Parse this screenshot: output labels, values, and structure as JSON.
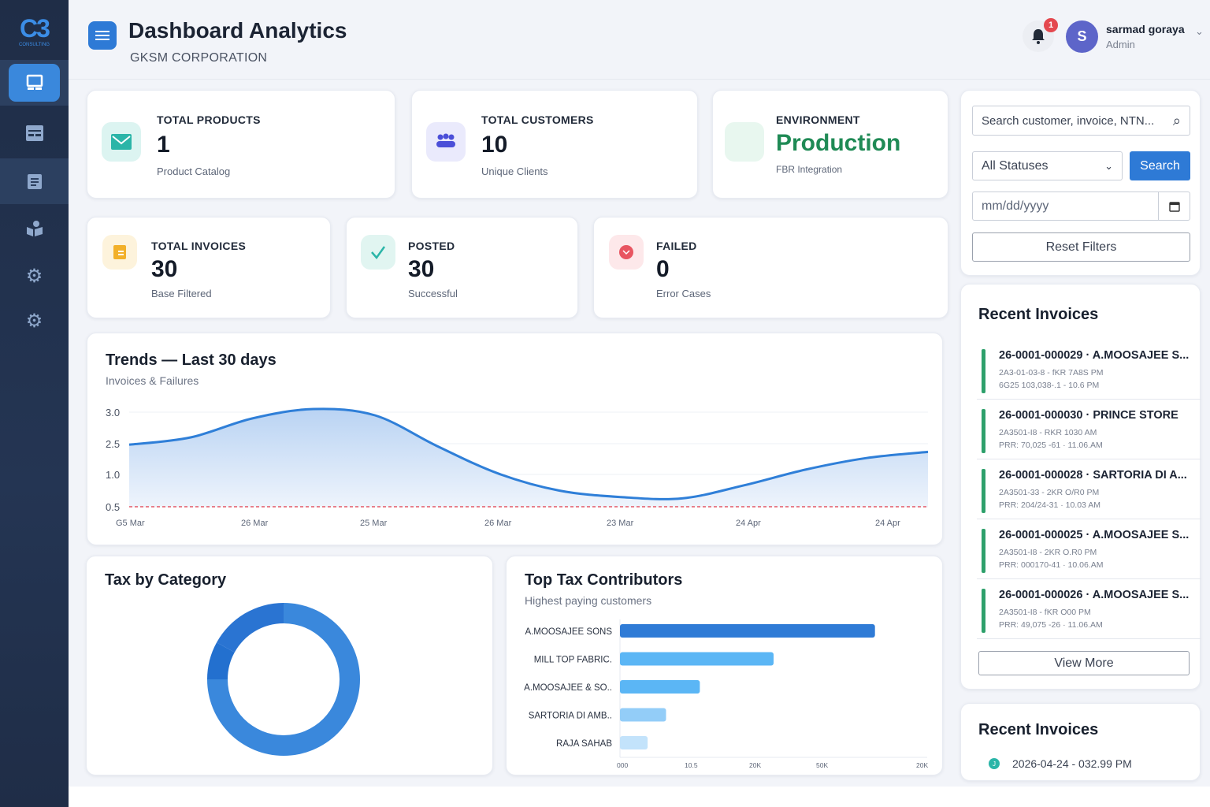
{
  "sidebar": {
    "logo": "C3",
    "logo_sub": "CONSULTING",
    "items": [
      {
        "name": "dashboard",
        "icon": "monitor-icon",
        "active": true
      },
      {
        "name": "invoices",
        "icon": "table-icon"
      },
      {
        "name": "reports",
        "icon": "clipboard-icon"
      },
      {
        "name": "customers",
        "icon": "users-icon"
      },
      {
        "name": "settings",
        "icon": "gear-icon"
      },
      {
        "name": "preferences",
        "icon": "gear-icon"
      }
    ]
  },
  "header": {
    "title": "Dashboard Analytics",
    "subtitle": "GKSM CORPORATION",
    "notification_count": "1",
    "user": {
      "initial": "S",
      "name": "sarmad goraya",
      "role": "Admin"
    }
  },
  "kpis": {
    "products": {
      "label": "TOTAL PRODUCTS",
      "value": "1",
      "sub": "Product Catalog",
      "color": "#2bb5a8"
    },
    "customers": {
      "label": "TOTAL CUSTOMERS",
      "value": "10",
      "sub": "Unique Clients",
      "color": "#4b4fd8"
    },
    "environment": {
      "label": "ENVIRONMENT",
      "value": "Production",
      "sub": "FBR Integration",
      "color": "#1f8a55"
    },
    "invoices": {
      "label": "TOTAL INVOICES",
      "value": "30",
      "sub": "Base Filtered",
      "color": "#f2b02a"
    },
    "posted": {
      "label": "POSTED",
      "value": "30",
      "sub": "Successful",
      "color": "#2bb5a8"
    },
    "failed": {
      "label": "FAILED",
      "value": "0",
      "sub": "Error Cases",
      "color": "#e85561"
    }
  },
  "filters": {
    "search_placeholder": "Search customer, invoice, NTN...",
    "status": "All Statuses",
    "search_button": "Search",
    "date_placeholder": "mm/dd/yyyy",
    "reset": "Reset Filters"
  },
  "recent": {
    "title": "Recent Invoices",
    "items": [
      {
        "title": "26-0001-000029 · A.MOOSAJEE S...",
        "line1": "2A3-01-03-8 - fKR 7A8S PM",
        "line2": "6G25 103,038-.1 - 10.6 PM"
      },
      {
        "title": "26-0001-000030 · PRINCE STORE",
        "line1": "2A3501-I8 - RKR 1030 AM",
        "line2": "PRR: 70,025 -61 · 11.06.AM"
      },
      {
        "title": "26-0001-000028 · SARTORIA DI A...",
        "line1": "2A3501-33 - 2KR O/R0 PM",
        "line2": "PRR: 204/24-31 · 10.03 AM"
      },
      {
        "title": "26-0001-000025 · A.MOOSAJEE S...",
        "line1": "2A3501-I8 - 2KR O.R0 PM",
        "line2": "PRR: 000170-41 · 10.06.AM"
      },
      {
        "title": "26-0001-000026 · A.MOOSAJEE S...",
        "line1": "2A3501-I8 - fKR O00 PM",
        "line2": "PRR: 49,075 -26 · 11.06.AM"
      }
    ],
    "view_more": "View More"
  },
  "recent2": {
    "title": "Recent Invoices",
    "item": "2026-04-24 - 032.99  PM",
    "badge": "J"
  },
  "chart_data": [
    {
      "type": "area",
      "title": "Trends — Last 30 days",
      "subtitle": "Invoices & Failures",
      "y_ticks": [
        "3.0",
        "2.5",
        "1.0",
        "0.5"
      ],
      "x_ticks": [
        "G5 Mar",
        "26 Mar",
        "25 Mar",
        "26 Mar",
        "23 Mar",
        "24 Apr",
        "24 Apr"
      ],
      "series": [
        {
          "values": [
            2.45,
            2.6,
            2.9,
            3.05,
            2.95,
            2.4,
            1.05,
            0.75,
            0.65,
            0.63,
            0.83,
            1.23,
            1.8,
            2.1
          ]
        }
      ],
      "threshold": 0.5,
      "color": "#2f7fd8",
      "threshold_color": "#e0394a",
      "grid": true
    },
    {
      "type": "pie",
      "title": "Tax by Category",
      "donut": true,
      "values": [
        75,
        8,
        17
      ],
      "colors": [
        "#3a88dc",
        "#2370cf",
        "#2a74d2"
      ]
    },
    {
      "type": "bar",
      "orientation": "horizontal",
      "title": "Top Tax Contributors",
      "subtitle": "Highest paying customers",
      "categories": [
        "A.MOOSAJEE SONS",
        "MILL TOP FABRIC.",
        "A.MOOSAJEE & SO..",
        "SARTORIA DI AMB..",
        "RAJA SAHAB"
      ],
      "values": [
        83,
        50,
        26,
        15,
        9
      ],
      "xlim": [
        0,
        100
      ],
      "x_ticks": [
        "000",
        "10.5",
        "20K",
        "50K",
        "20K"
      ],
      "colors": [
        "#2f7bd6",
        "#5bb6f5",
        "#5bb6f5",
        "#93cdf8",
        "#c3e3fb"
      ]
    }
  ]
}
